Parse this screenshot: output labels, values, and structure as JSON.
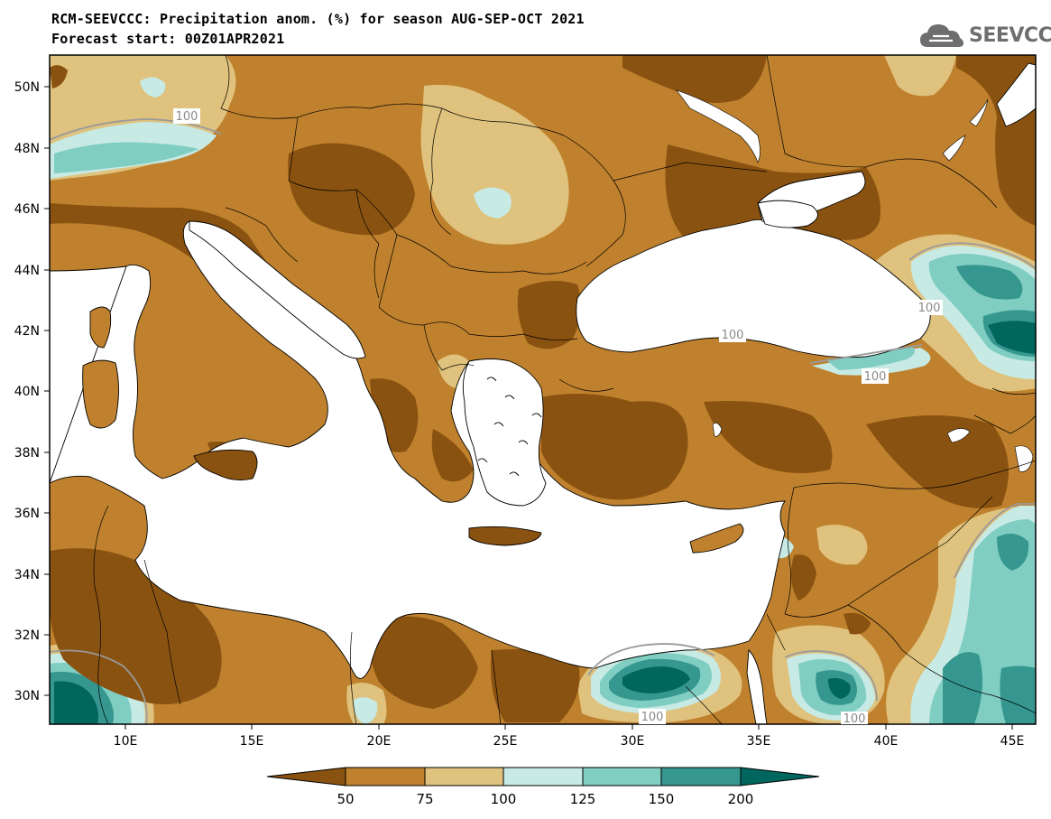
{
  "header": {
    "title_line1": "RCM-SEEVCCC: Precipitation anom. (%) for season AUG-SEP-OCT 2021",
    "title_line2": "Forecast start: 00Z01APR2021",
    "logo_text": "SEEVCCC",
    "logo_icon": "cloud-icon"
  },
  "map": {
    "lon_ticks": [
      "10E",
      "15E",
      "20E",
      "25E",
      "30E",
      "35E",
      "40E",
      "45E"
    ],
    "lat_ticks": [
      "50N",
      "48N",
      "46N",
      "44N",
      "42N",
      "40N",
      "38N",
      "36N",
      "34N",
      "32N",
      "30N"
    ],
    "contour_label": "100",
    "colors": {
      "lt50": "#8a5210",
      "b50_75": "#bf812d",
      "b75_100": "#dfc27d",
      "b100_125": "#c7eae5",
      "b125_150": "#80cdc1",
      "b150_200": "#35978f",
      "gt200": "#01665e",
      "sea": "#ffffff"
    }
  },
  "colorbar": {
    "labels": [
      "50",
      "75",
      "100",
      "125",
      "150",
      "200"
    ],
    "colors": [
      "#8a5210",
      "#bf812d",
      "#dfc27d",
      "#c7eae5",
      "#80cdc1",
      "#35978f",
      "#01665e"
    ]
  }
}
